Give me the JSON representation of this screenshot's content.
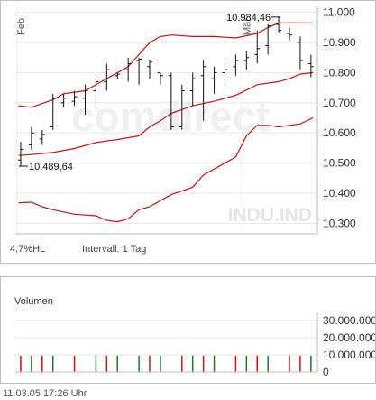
{
  "chart_data": [
    {
      "type": "ohlc",
      "watermark": "comdirect",
      "symbol": "INDU.IND",
      "month_labels": [
        {
          "label": "Feb",
          "x": 0
        },
        {
          "label": "Mär",
          "x": 21
        }
      ],
      "y_ticks": [
        "11.000",
        "10.900",
        "10.800",
        "10.700",
        "10.600",
        "10.500",
        "10.400",
        "10.300"
      ],
      "y_tick_values": [
        11000,
        10900,
        10800,
        10700,
        10600,
        10500,
        10400,
        10300
      ],
      "ylim": [
        10265,
        11020
      ],
      "xlim": [
        -0.5,
        27.6
      ],
      "annotations": {
        "low": {
          "label": "10.489,64",
          "value": 10489.64,
          "x": 0
        },
        "high": {
          "label": "10.984,46",
          "value": 10984.46,
          "x": 24
        }
      },
      "ohlc": [
        {
          "o": 10510,
          "h": 10570,
          "l": 10489.64,
          "c": 10545
        },
        {
          "o": 10560,
          "h": 10620,
          "l": 10545,
          "c": 10600
        },
        {
          "o": 10580,
          "h": 10610,
          "l": 10560,
          "c": 10595
        },
        {
          "o": 10620,
          "h": 10730,
          "l": 10610,
          "c": 10715
        },
        {
          "o": 10700,
          "h": 10730,
          "l": 10685,
          "c": 10715
        },
        {
          "o": 10705,
          "h": 10740,
          "l": 10690,
          "c": 10720
        },
        {
          "o": 10715,
          "h": 10760,
          "l": 10660,
          "c": 10740
        },
        {
          "o": 10740,
          "h": 10780,
          "l": 10670,
          "c": 10770
        },
        {
          "o": 10770,
          "h": 10830,
          "l": 10740,
          "c": 10810
        },
        {
          "o": 10790,
          "h": 10800,
          "l": 10780,
          "c": 10795
        },
        {
          "o": 10810,
          "h": 10850,
          "l": 10770,
          "c": 10830
        },
        {
          "o": 10840,
          "h": 10850,
          "l": 10760,
          "c": 10845
        },
        {
          "o": 10820,
          "h": 10840,
          "l": 10780,
          "c": 10835
        },
        {
          "o": 10800,
          "h": 10800,
          "l": 10760,
          "c": 10790
        },
        {
          "o": 10790,
          "h": 10800,
          "l": 10610,
          "c": 10620
        },
        {
          "o": 10620,
          "h": 10760,
          "l": 10610,
          "c": 10740
        },
        {
          "o": 10740,
          "h": 10800,
          "l": 10690,
          "c": 10780
        },
        {
          "o": 10790,
          "h": 10840,
          "l": 10640,
          "c": 10820
        },
        {
          "o": 10780,
          "h": 10820,
          "l": 10730,
          "c": 10800
        },
        {
          "o": 10800,
          "h": 10840,
          "l": 10760,
          "c": 10810
        },
        {
          "o": 10820,
          "h": 10860,
          "l": 10790,
          "c": 10840
        },
        {
          "o": 10840,
          "h": 10870,
          "l": 10810,
          "c": 10850
        },
        {
          "o": 10860,
          "h": 10940,
          "l": 10830,
          "c": 10880
        },
        {
          "o": 10890,
          "h": 10960,
          "l": 10860,
          "c": 10955
        },
        {
          "o": 10960,
          "h": 10984.46,
          "l": 10930,
          "c": 10940
        },
        {
          "o": 10930,
          "h": 10950,
          "l": 10905,
          "c": 10925
        },
        {
          "o": 10900,
          "h": 10920,
          "l": 10810,
          "c": 10840
        },
        {
          "o": 10830,
          "h": 10860,
          "l": 10785,
          "c": 10820
        }
      ],
      "bands": {
        "color": "#cc1111",
        "upper": [
          [
            -0.2,
            10690
          ],
          [
            1,
            10685
          ],
          [
            3,
            10710
          ],
          [
            4,
            10730
          ],
          [
            6,
            10740
          ],
          [
            8,
            10780
          ],
          [
            10,
            10820
          ],
          [
            11,
            10860
          ],
          [
            12,
            10900
          ],
          [
            13,
            10920
          ],
          [
            14,
            10925
          ],
          [
            16,
            10920
          ],
          [
            18,
            10920
          ],
          [
            20,
            10915
          ],
          [
            22,
            10930
          ],
          [
            23,
            10950
          ],
          [
            24,
            10965
          ],
          [
            26,
            10965
          ],
          [
            27.2,
            10965
          ]
        ],
        "middle": [
          [
            -0.2,
            10525
          ],
          [
            1,
            10528
          ],
          [
            3,
            10535
          ],
          [
            5,
            10548
          ],
          [
            7,
            10568
          ],
          [
            9,
            10578
          ],
          [
            11,
            10590
          ],
          [
            12,
            10620
          ],
          [
            13,
            10640
          ],
          [
            14,
            10665
          ],
          [
            16,
            10690
          ],
          [
            18,
            10705
          ],
          [
            20,
            10725
          ],
          [
            22,
            10760
          ],
          [
            24,
            10770
          ],
          [
            25,
            10780
          ],
          [
            26,
            10795
          ],
          [
            27.2,
            10800
          ]
        ],
        "lower": [
          [
            -0.2,
            10368
          ],
          [
            1,
            10370
          ],
          [
            2,
            10355
          ],
          [
            3,
            10345
          ],
          [
            5,
            10330
          ],
          [
            7,
            10325
          ],
          [
            8,
            10310
          ],
          [
            9,
            10305
          ],
          [
            10,
            10315
          ],
          [
            11,
            10345
          ],
          [
            12,
            10355
          ],
          [
            14,
            10395
          ],
          [
            16,
            10420
          ],
          [
            17,
            10460
          ],
          [
            18,
            10480
          ],
          [
            20,
            10520
          ],
          [
            21,
            10590
          ],
          [
            22,
            10625
          ],
          [
            23,
            10625
          ],
          [
            24,
            10620
          ],
          [
            25,
            10625
          ],
          [
            26,
            10630
          ],
          [
            27.2,
            10650
          ]
        ]
      }
    },
    {
      "type": "bar",
      "title": "Volumen",
      "y_ticks": [
        "30.000.000",
        "20.000.000",
        "10.000.000",
        "0"
      ],
      "y_tick_values": [
        30000000,
        20000000,
        10000000,
        0
      ],
      "ylim": [
        0,
        32000000
      ],
      "xlim": [
        -0.5,
        27.6
      ],
      "up_color": "#1a7a2a",
      "down_color": "#cc1111",
      "bars": [
        {
          "x": 0,
          "v": 9500000,
          "color": "red"
        },
        {
          "x": 1,
          "v": 9500000,
          "color": "green"
        },
        {
          "x": 2,
          "v": 9500000,
          "color": "red"
        },
        {
          "x": 3,
          "v": 9500000,
          "color": "green"
        },
        {
          "x": 5,
          "v": 9500000,
          "color": "red"
        },
        {
          "x": 7,
          "v": 9500000,
          "color": "green"
        },
        {
          "x": 8,
          "v": 9500000,
          "color": "red"
        },
        {
          "x": 9,
          "v": 9500000,
          "color": "green"
        },
        {
          "x": 11,
          "v": 9500000,
          "color": "green"
        },
        {
          "x": 12,
          "v": 9500000,
          "color": "red"
        },
        {
          "x": 13,
          "v": 9500000,
          "color": "green"
        },
        {
          "x": 15,
          "v": 9500000,
          "color": "red"
        },
        {
          "x": 16,
          "v": 9500000,
          "color": "green"
        },
        {
          "x": 17,
          "v": 9500000,
          "color": "red"
        },
        {
          "x": 18,
          "v": 9500000,
          "color": "green"
        },
        {
          "x": 20,
          "v": 9500000,
          "color": "red"
        },
        {
          "x": 21,
          "v": 9500000,
          "color": "green"
        },
        {
          "x": 22,
          "v": 9500000,
          "color": "red"
        },
        {
          "x": 23,
          "v": 9500000,
          "color": "green"
        },
        {
          "x": 25,
          "v": 9500000,
          "color": "red"
        },
        {
          "x": 26,
          "v": 9500000,
          "color": "red"
        },
        {
          "x": 27,
          "v": 9500000,
          "color": "green"
        }
      ]
    }
  ],
  "price_footer": {
    "scale_text": "4,7%HL",
    "interval_text": "Intervall: 1 Tag"
  },
  "timestamp": "11.03.05    17:26 Uhr"
}
